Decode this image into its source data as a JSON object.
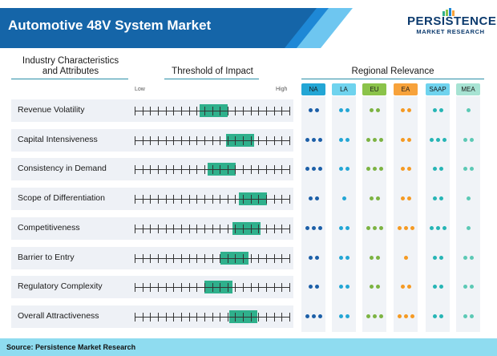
{
  "header": {
    "title": "Automotive 48V System Market",
    "banner_color": "#1565a8",
    "stripe_colors": [
      "#1e88d6",
      "#6ec6f0"
    ]
  },
  "logo": {
    "main": "PERSISTENCE",
    "sub": "MARKET RESEARCH",
    "icon": "bar-chart-logo"
  },
  "columns": {
    "characteristics": "Industry Characteristics and Attributes",
    "threshold": "Threshold of Impact",
    "regional": "Regional Relevance",
    "scale_low": "Low",
    "scale_high": "High"
  },
  "regions": [
    {
      "code": "NA",
      "color": "#23a6d5",
      "dot_color": "#1c5fa8"
    },
    {
      "code": "LA",
      "color": "#6fd3ee",
      "dot_color": "#23a6d5"
    },
    {
      "code": "EU",
      "color": "#8bc34a",
      "dot_color": "#7cb342"
    },
    {
      "code": "EA",
      "color": "#f7a23b",
      "dot_color": "#f59a23"
    },
    {
      "code": "SAAP",
      "color": "#6fd3ee",
      "dot_color": "#26b5b5"
    },
    {
      "code": "MEA",
      "color": "#a7e3d3",
      "dot_color": "#5cc9b5"
    }
  ],
  "rows": [
    {
      "label": "Revenue Volatility",
      "impact_start": 0.42,
      "impact_end": 0.6,
      "relevance": [
        2,
        2,
        2,
        2,
        2,
        1
      ]
    },
    {
      "label": "Capital Intensiveness",
      "impact_start": 0.59,
      "impact_end": 0.77,
      "relevance": [
        3,
        2,
        3,
        2,
        3,
        2
      ]
    },
    {
      "label": "Consistency in Demand",
      "impact_start": 0.47,
      "impact_end": 0.65,
      "relevance": [
        3,
        2,
        3,
        2,
        2,
        2
      ]
    },
    {
      "label": "Scope of Differentiation",
      "impact_start": 0.67,
      "impact_end": 0.85,
      "relevance": [
        2,
        1,
        2,
        2,
        2,
        1
      ]
    },
    {
      "label": "Competitiveness",
      "impact_start": 0.63,
      "impact_end": 0.81,
      "relevance": [
        3,
        2,
        3,
        3,
        3,
        1
      ]
    },
    {
      "label": "Barrier to Entry",
      "impact_start": 0.55,
      "impact_end": 0.73,
      "relevance": [
        2,
        2,
        2,
        1,
        2,
        2
      ]
    },
    {
      "label": "Regulatory Complexity",
      "impact_start": 0.45,
      "impact_end": 0.63,
      "relevance": [
        2,
        2,
        2,
        2,
        2,
        2
      ]
    },
    {
      "label": "Overall Attractiveness",
      "impact_start": 0.61,
      "impact_end": 0.79,
      "relevance": [
        3,
        2,
        3,
        3,
        2,
        2
      ]
    }
  ],
  "footer": {
    "source": "Source: Persistence Market Research",
    "color": "#8fdcf0"
  }
}
